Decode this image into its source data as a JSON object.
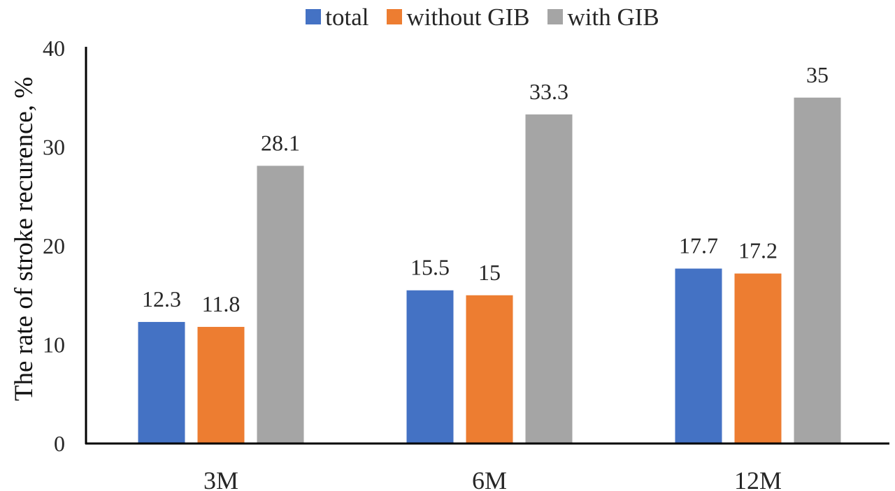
{
  "chart_data": {
    "type": "bar",
    "categories": [
      "3M",
      "6M",
      "12M"
    ],
    "series": [
      {
        "name": "total",
        "values": [
          12.3,
          15.5,
          17.7
        ],
        "color": "#4472C4"
      },
      {
        "name": "without GIB",
        "values": [
          11.8,
          15,
          17.2
        ],
        "color": "#ED7D31"
      },
      {
        "name": "with GIB",
        "values": [
          28.1,
          33.3,
          35
        ],
        "color": "#A5A5A5"
      }
    ],
    "data_labels": [
      [
        "12.3",
        "15.5",
        "17.7"
      ],
      [
        "11.8",
        "15",
        "17.2"
      ],
      [
        "28.1",
        "33.3",
        "35"
      ]
    ],
    "ylabel": "The rate of stroke recurence, %",
    "xlabel": "",
    "ylim": [
      0,
      40
    ],
    "yticks": [
      "0",
      "10",
      "20",
      "30",
      "40"
    ],
    "grid": false,
    "legend_position": "top"
  }
}
